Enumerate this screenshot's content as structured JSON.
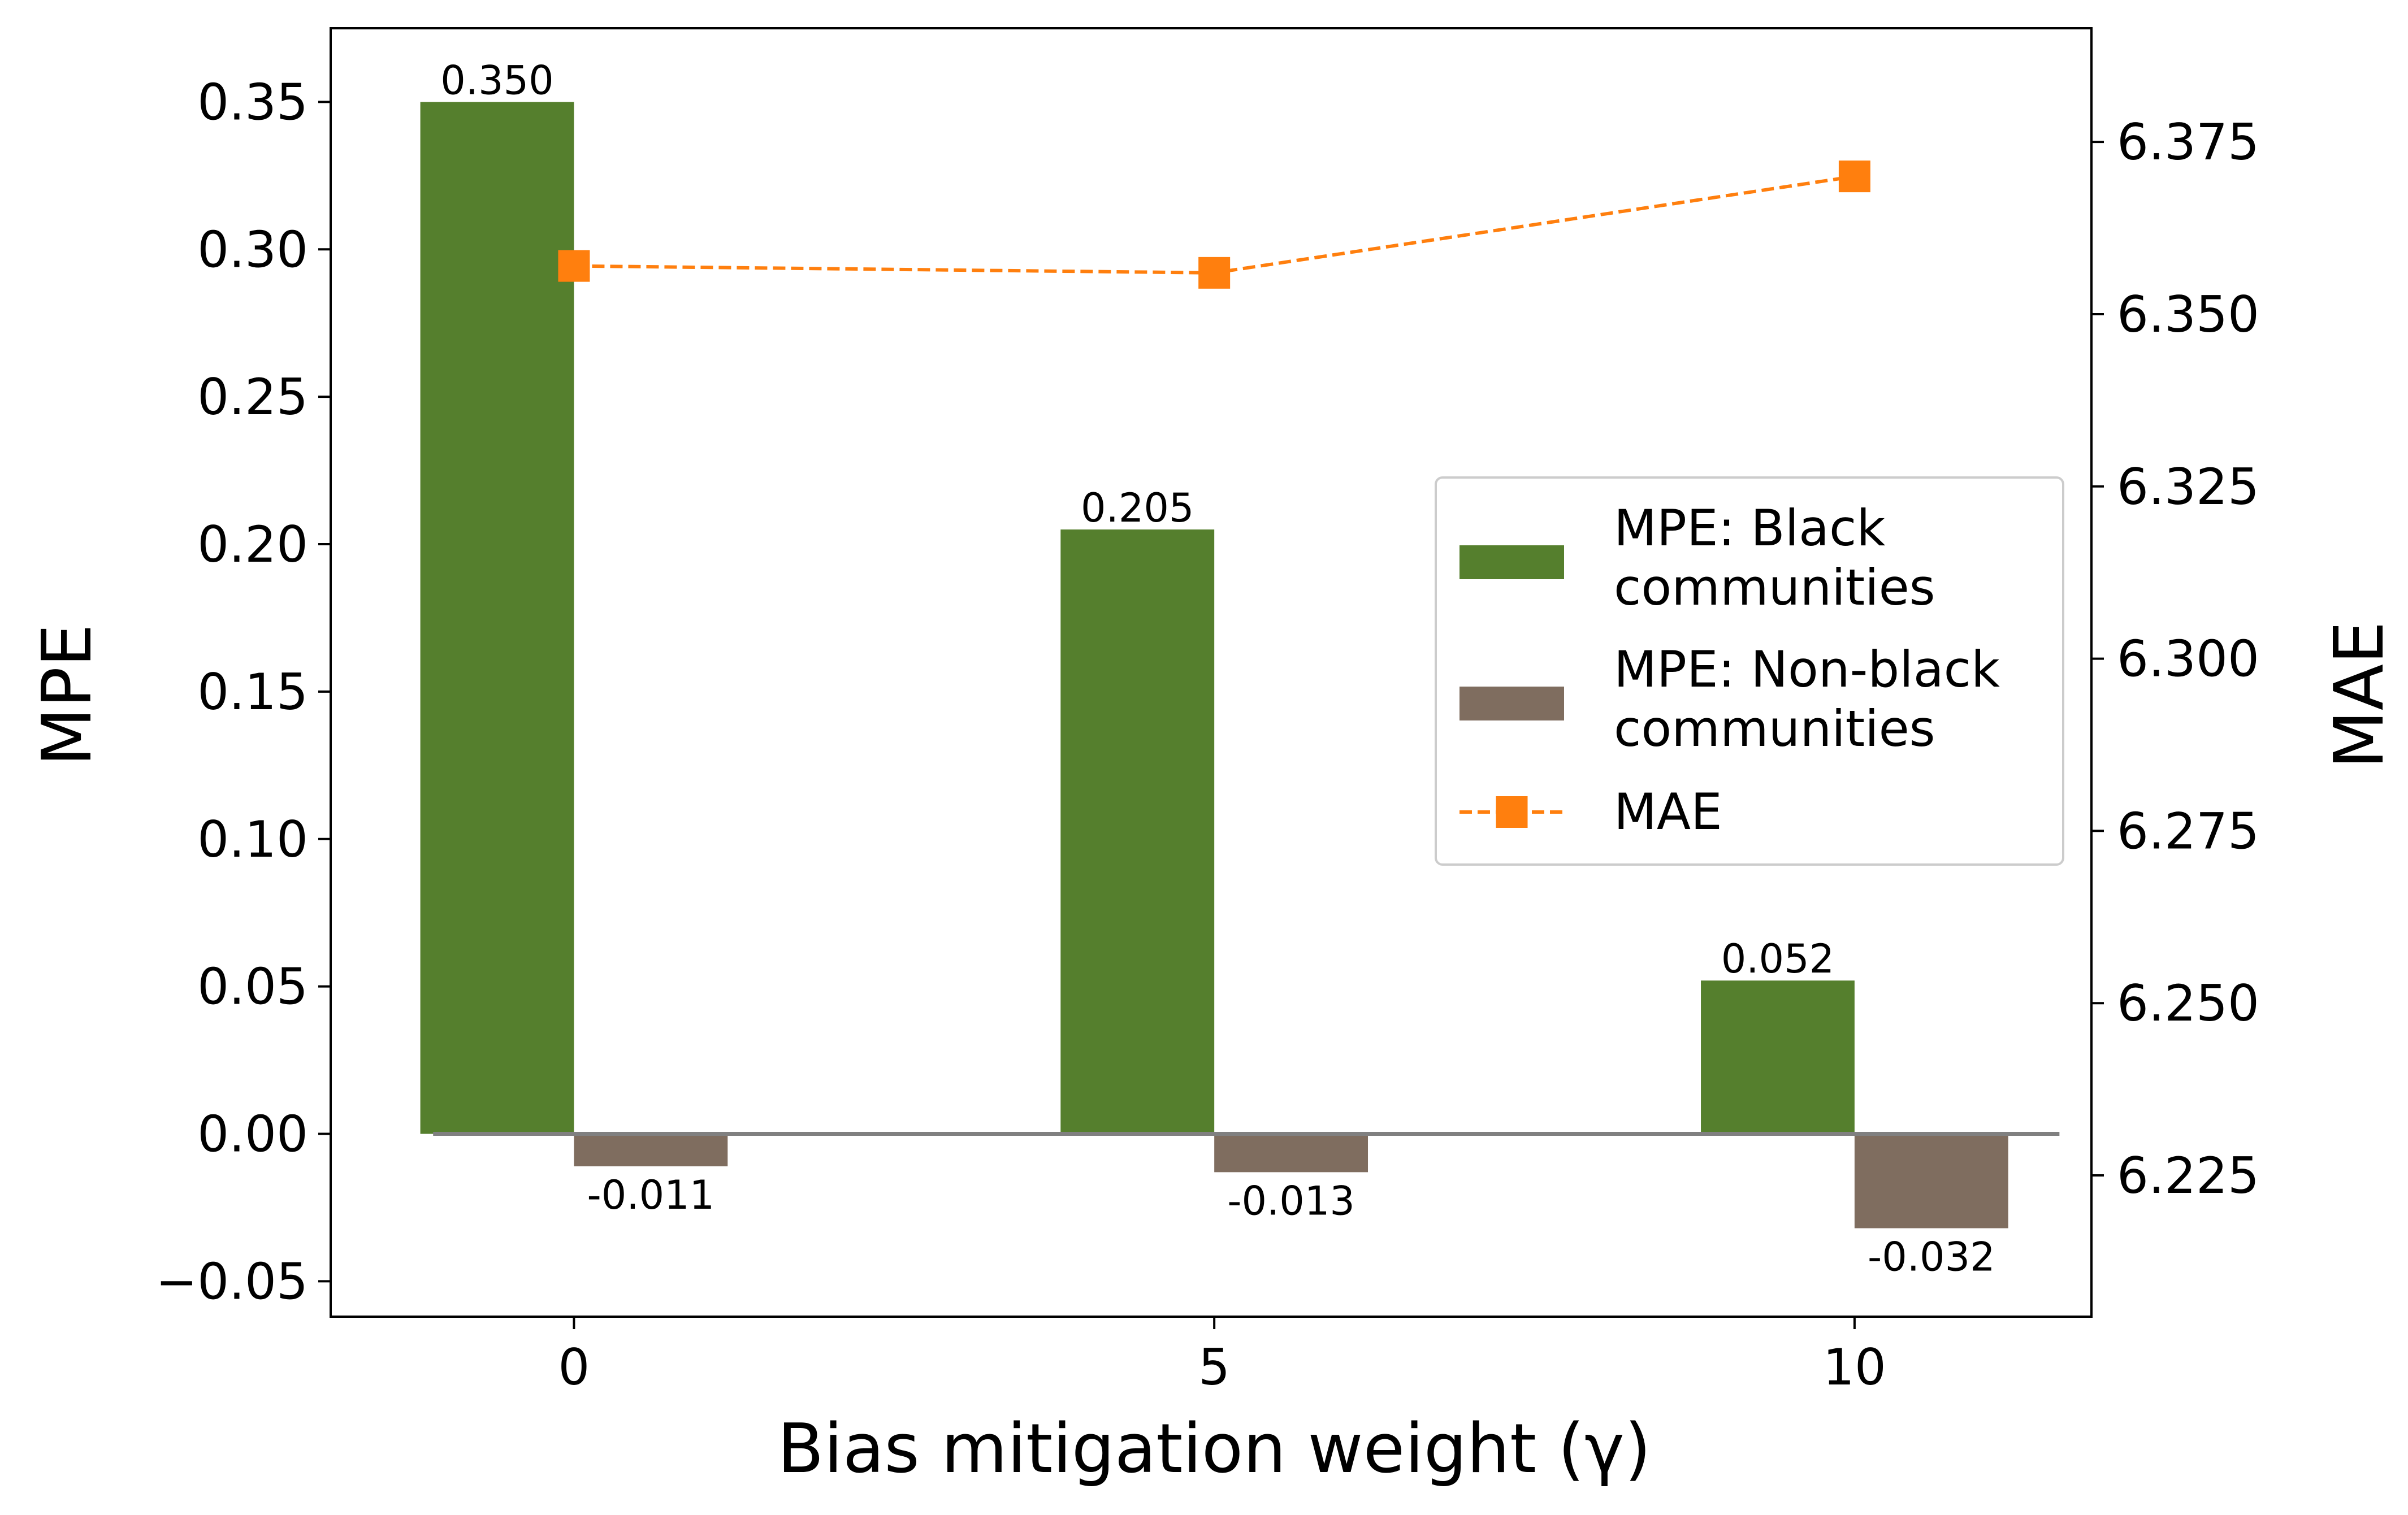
{
  "chart_data": {
    "type": "bar",
    "xlabel": "Bias mitigation weight (γ)",
    "ylabel": "MPE",
    "y2label": "MAE",
    "categories": [
      "0",
      "5",
      "10"
    ],
    "x_values": [
      0,
      5,
      10
    ],
    "series": [
      {
        "name": "MPE: Black communities",
        "name_lines": [
          "MPE: Black",
          "communities"
        ],
        "axis": "left",
        "type": "bar",
        "color": "#557F2D",
        "values": [
          0.35,
          0.205,
          0.052
        ],
        "labels": [
          "0.350",
          "0.205",
          "0.052"
        ]
      },
      {
        "name": "MPE: Non-black communities",
        "name_lines": [
          "MPE: Non-black",
          "communities"
        ],
        "axis": "right",
        "type": "bar",
        "color": "#7F6D5F",
        "values": [
          -0.011,
          -0.013,
          -0.032
        ],
        "labels": [
          "-0.011",
          "-0.013",
          "-0.032"
        ]
      },
      {
        "name": "MAE",
        "name_lines": [
          "MAE"
        ],
        "axis": "right",
        "type": "line",
        "marker": "square",
        "line_style": "dashed",
        "color": "#FF7F0E",
        "values": [
          6.357,
          6.356,
          6.37
        ]
      }
    ],
    "xlim": [
      -1.9,
      11.85
    ],
    "ylim": [
      -0.062,
      0.375
    ],
    "y2lim": [
      6.2045,
      6.3915
    ],
    "yticks": [
      -0.05,
      0.0,
      0.05,
      0.1,
      0.15,
      0.2,
      0.25,
      0.3,
      0.35
    ],
    "ytick_labels": [
      "−0.05",
      "0.00",
      "0.05",
      "0.10",
      "0.15",
      "0.20",
      "0.25",
      "0.30",
      "0.35"
    ],
    "y2ticks": [
      6.225,
      6.25,
      6.275,
      6.3,
      6.325,
      6.35,
      6.375
    ],
    "y2tick_labels": [
      "6.225",
      "6.250",
      "6.275",
      "6.300",
      "6.325",
      "6.350",
      "6.375"
    ],
    "legend_position": "center-right",
    "grid": false
  }
}
